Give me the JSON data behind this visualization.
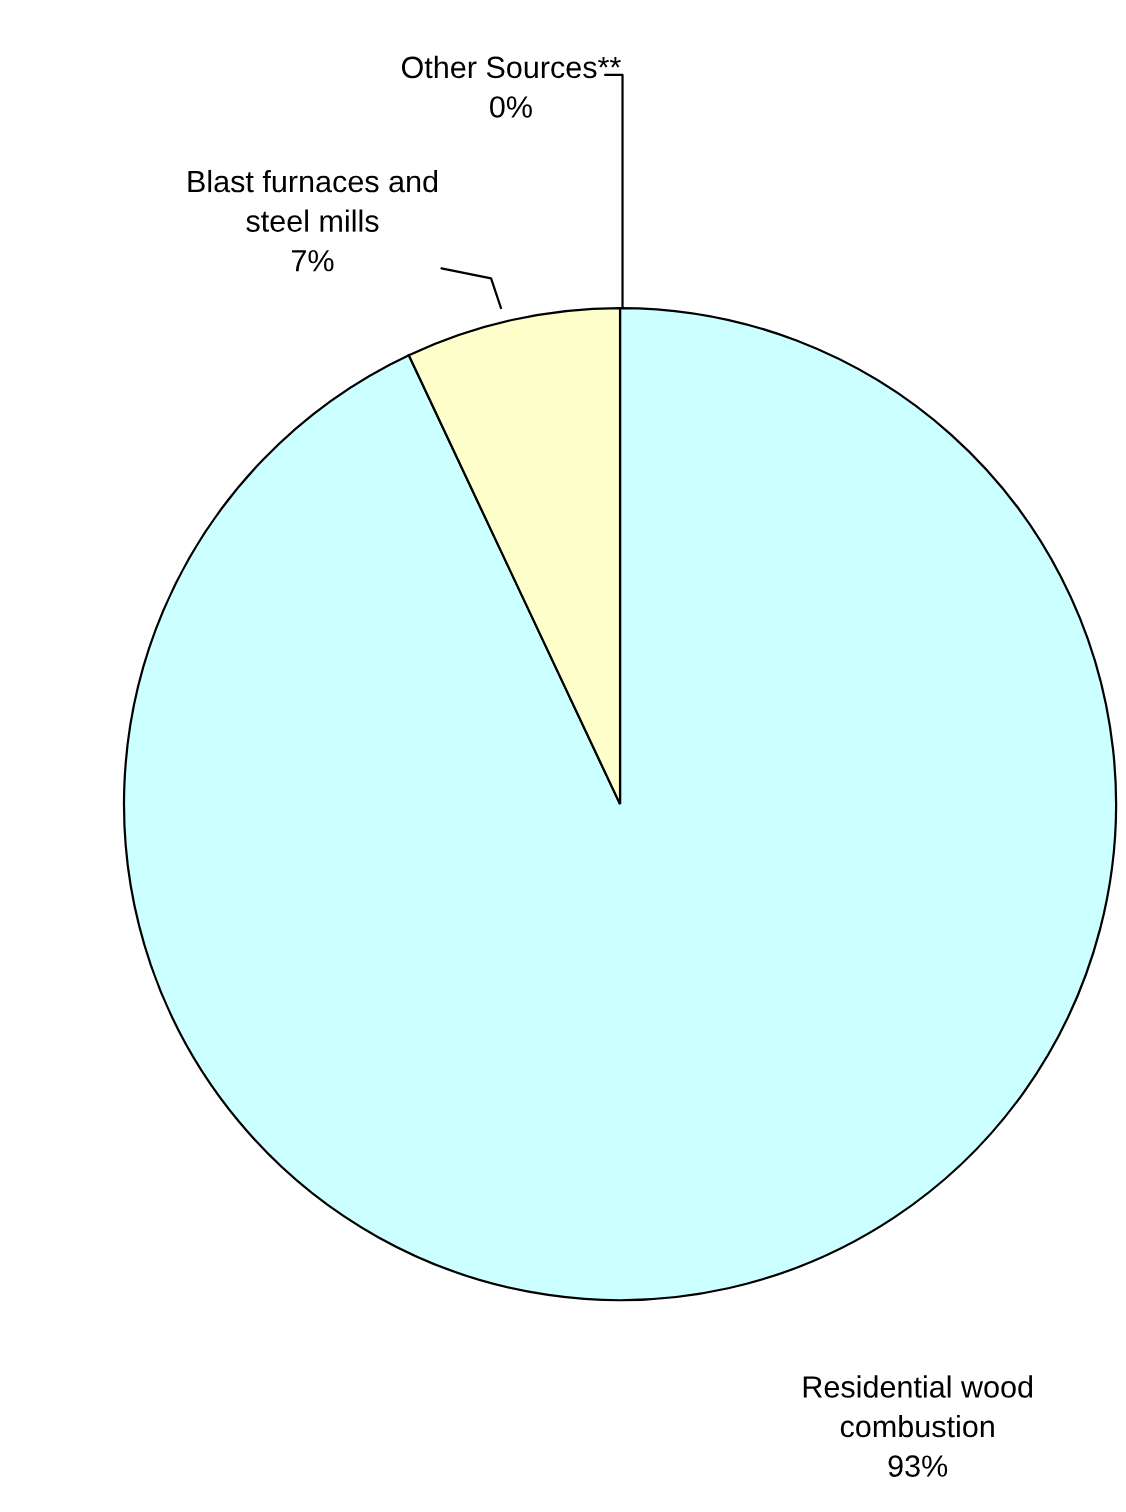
{
  "chart_data": {
    "type": "pie",
    "categories": [
      "Other Sources**",
      "Residential wood combustion",
      "Blast furnaces and steel mills"
    ],
    "values": [
      0,
      93,
      7
    ],
    "colors": [
      "#000000",
      "#ccffff",
      "#ffffcc"
    ],
    "value_labels": [
      "0%",
      "93%",
      "7%"
    ],
    "legend": false
  }
}
